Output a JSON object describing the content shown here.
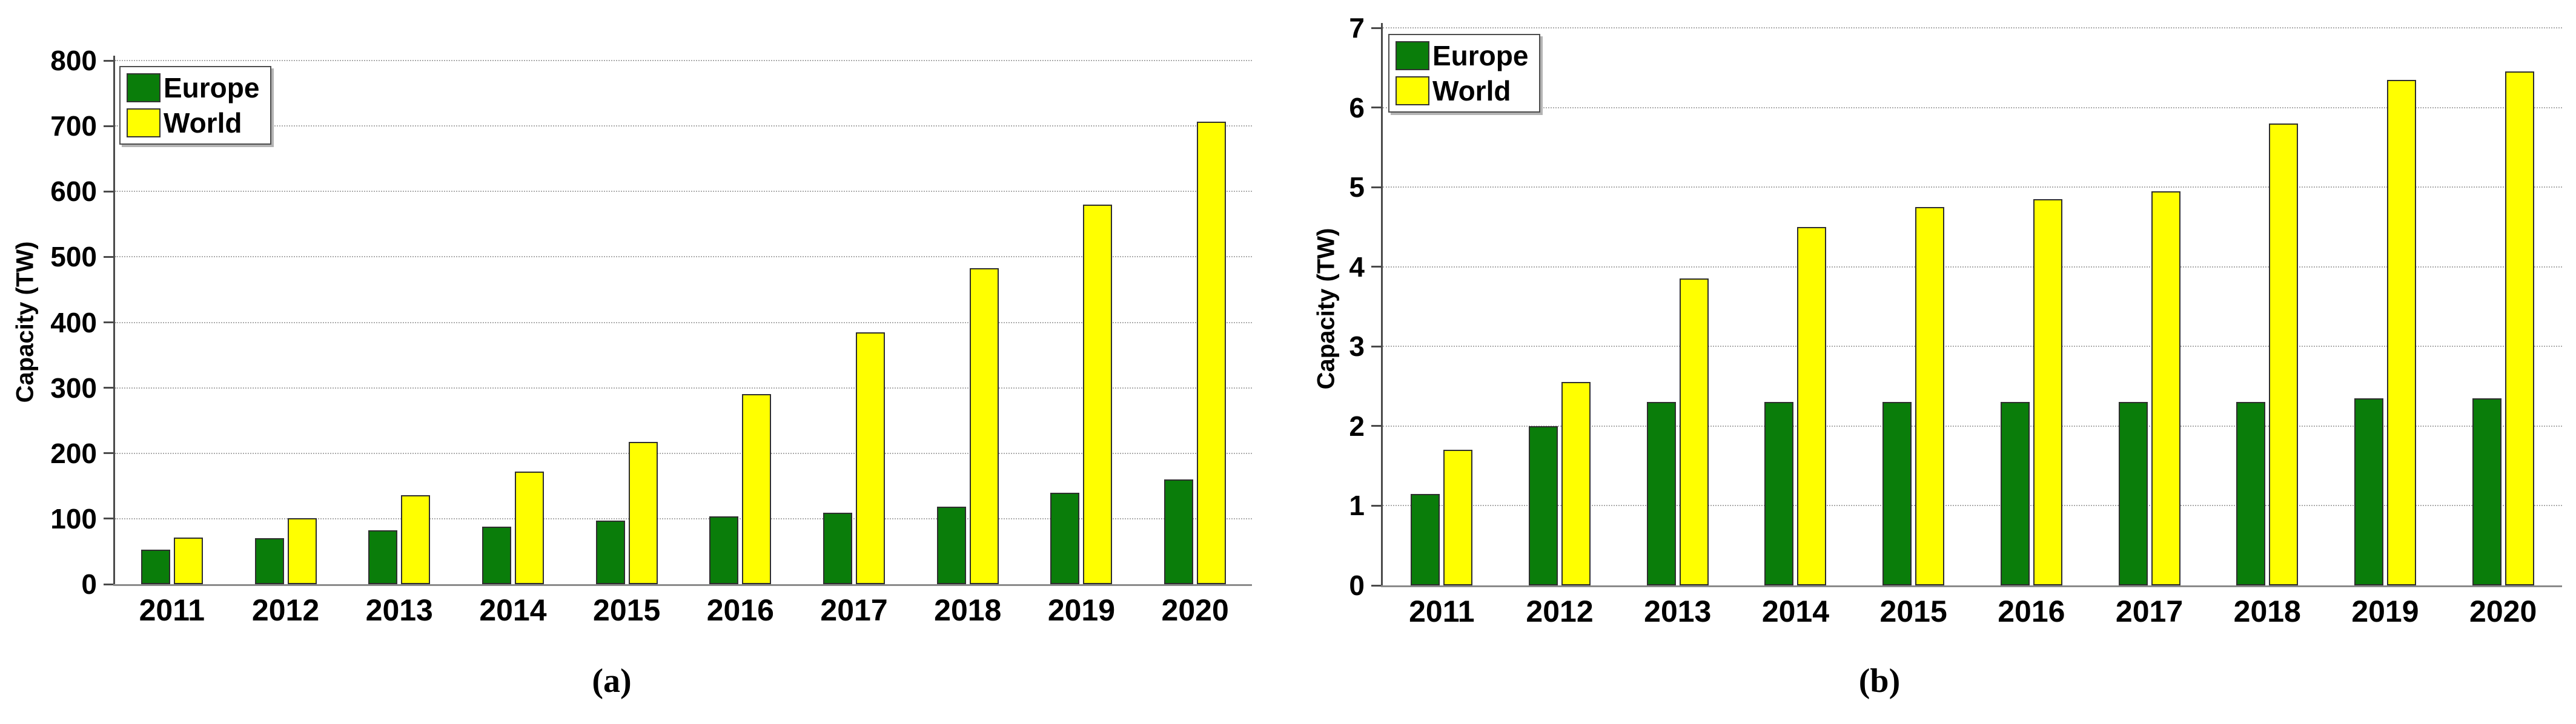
{
  "figure": {
    "background": "#ffffff",
    "caption_a": "(a)",
    "caption_b": "(b)"
  },
  "chart_data": [
    {
      "type": "bar",
      "panel": "a",
      "caption": "(a)",
      "ylabel": "Capacity (TW)",
      "xlabel": "",
      "categories": [
        "2011",
        "2012",
        "2013",
        "2014",
        "2015",
        "2016",
        "2017",
        "2018",
        "2019",
        "2020"
      ],
      "series": [
        {
          "name": "Europe",
          "color": "#0a7d0a",
          "values": [
            53,
            70,
            82,
            88,
            97,
            104,
            109,
            118,
            140,
            160
          ]
        },
        {
          "name": "World",
          "color": "#ffff00",
          "values": [
            71,
            101,
            136,
            172,
            217,
            290,
            385,
            483,
            580,
            707
          ]
        }
      ],
      "ylim": [
        0,
        800
      ],
      "ytick_step": 100,
      "yticks": [
        "0",
        "100",
        "200",
        "300",
        "400",
        "500",
        "600",
        "700",
        "800"
      ],
      "grid": "horizontal-dotted",
      "grid_color": "#ababab",
      "axis_color": "#4a4a4a",
      "baseline_color": "#8a8a8a",
      "legend_position": "top-left",
      "legend_entries": [
        "Europe",
        "World"
      ]
    },
    {
      "type": "bar",
      "panel": "b",
      "caption": "(b)",
      "ylabel": "Capacity (TW)",
      "xlabel": "",
      "categories": [
        "2011",
        "2012",
        "2013",
        "2014",
        "2015",
        "2016",
        "2017",
        "2018",
        "2019",
        "2020"
      ],
      "series": [
        {
          "name": "Europe",
          "color": "#0a7d0a",
          "values": [
            1.15,
            2.0,
            2.3,
            2.3,
            2.3,
            2.3,
            2.3,
            2.3,
            2.35,
            2.35
          ]
        },
        {
          "name": "World",
          "color": "#ffff00",
          "values": [
            1.7,
            2.55,
            3.85,
            4.5,
            4.75,
            4.85,
            4.95,
            5.8,
            6.35,
            6.45
          ]
        }
      ],
      "ylim": [
        0,
        7
      ],
      "ytick_step": 1,
      "yticks": [
        "0",
        "1",
        "2",
        "3",
        "4",
        "5",
        "6",
        "7"
      ],
      "grid": "horizontal-dotted",
      "grid_color": "#ababab",
      "axis_color": "#4a4a4a",
      "baseline_color": "#8a8a8a",
      "legend_position": "top-left",
      "legend_entries": [
        "Europe",
        "World"
      ]
    }
  ]
}
